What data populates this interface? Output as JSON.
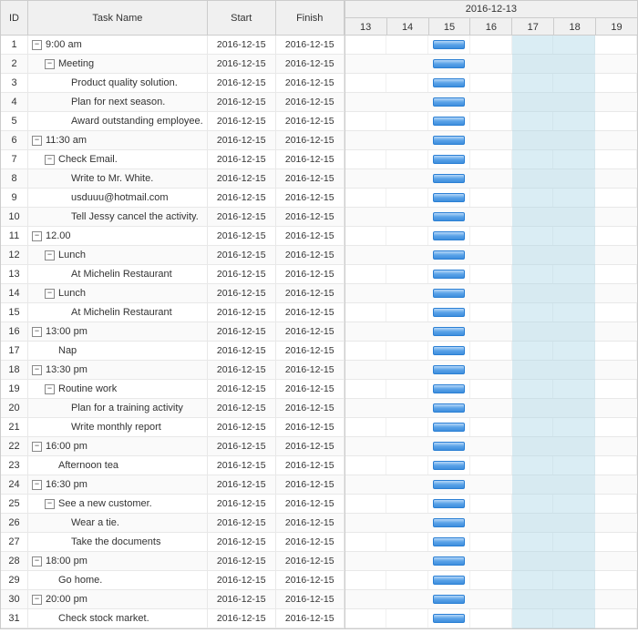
{
  "columns": {
    "id": "ID",
    "task": "Task Name",
    "start": "Start",
    "finish": "Finish"
  },
  "timeline": {
    "header_date": "2016-12-13",
    "days": [
      "13",
      "14",
      "15",
      "16",
      "17",
      "18",
      "19"
    ],
    "highlight_start_pct": 57.1,
    "highlight_end_pct": 85.7,
    "bar_left_pct": 30.0,
    "bar_width_pct": 11.0,
    "day_width_pct": 14.2857
  },
  "rows": [
    {
      "id": "1",
      "indent": 0,
      "expander": true,
      "name": "9:00 am",
      "start": "2016-12-15",
      "finish": "2016-12-15"
    },
    {
      "id": "2",
      "indent": 1,
      "expander": true,
      "name": "Meeting",
      "start": "2016-12-15",
      "finish": "2016-12-15"
    },
    {
      "id": "3",
      "indent": 2,
      "expander": false,
      "name": "Product quality solution.",
      "start": "2016-12-15",
      "finish": "2016-12-15"
    },
    {
      "id": "4",
      "indent": 2,
      "expander": false,
      "name": "Plan for next season.",
      "start": "2016-12-15",
      "finish": "2016-12-15"
    },
    {
      "id": "5",
      "indent": 2,
      "expander": false,
      "name": "Award outstanding employee.",
      "start": "2016-12-15",
      "finish": "2016-12-15"
    },
    {
      "id": "6",
      "indent": 0,
      "expander": true,
      "name": "11:30 am",
      "start": "2016-12-15",
      "finish": "2016-12-15"
    },
    {
      "id": "7",
      "indent": 1,
      "expander": true,
      "name": "Check Email.",
      "start": "2016-12-15",
      "finish": "2016-12-15"
    },
    {
      "id": "8",
      "indent": 2,
      "expander": false,
      "name": "Write to Mr. White.",
      "start": "2016-12-15",
      "finish": "2016-12-15"
    },
    {
      "id": "9",
      "indent": 2,
      "expander": false,
      "name": "usduuu@hotmail.com",
      "start": "2016-12-15",
      "finish": "2016-12-15"
    },
    {
      "id": "10",
      "indent": 2,
      "expander": false,
      "name": "Tell Jessy cancel the activity.",
      "start": "2016-12-15",
      "finish": "2016-12-15"
    },
    {
      "id": "11",
      "indent": 0,
      "expander": true,
      "name": "12.00",
      "start": "2016-12-15",
      "finish": "2016-12-15"
    },
    {
      "id": "12",
      "indent": 1,
      "expander": true,
      "name": "Lunch",
      "start": "2016-12-15",
      "finish": "2016-12-15"
    },
    {
      "id": "13",
      "indent": 2,
      "expander": false,
      "name": "At Michelin Restaurant",
      "start": "2016-12-15",
      "finish": "2016-12-15"
    },
    {
      "id": "14",
      "indent": 1,
      "expander": true,
      "name": "Lunch",
      "start": "2016-12-15",
      "finish": "2016-12-15"
    },
    {
      "id": "15",
      "indent": 2,
      "expander": false,
      "name": "At Michelin Restaurant",
      "start": "2016-12-15",
      "finish": "2016-12-15"
    },
    {
      "id": "16",
      "indent": 0,
      "expander": true,
      "name": "13:00 pm",
      "start": "2016-12-15",
      "finish": "2016-12-15"
    },
    {
      "id": "17",
      "indent": 1,
      "expander": false,
      "name": "Nap",
      "start": "2016-12-15",
      "finish": "2016-12-15"
    },
    {
      "id": "18",
      "indent": 0,
      "expander": true,
      "name": "13:30 pm",
      "start": "2016-12-15",
      "finish": "2016-12-15"
    },
    {
      "id": "19",
      "indent": 1,
      "expander": true,
      "name": "Routine work",
      "start": "2016-12-15",
      "finish": "2016-12-15"
    },
    {
      "id": "20",
      "indent": 2,
      "expander": false,
      "name": "Plan for a training activity",
      "start": "2016-12-15",
      "finish": "2016-12-15"
    },
    {
      "id": "21",
      "indent": 2,
      "expander": false,
      "name": "Write monthly report",
      "start": "2016-12-15",
      "finish": "2016-12-15"
    },
    {
      "id": "22",
      "indent": 0,
      "expander": true,
      "name": "16:00 pm",
      "start": "2016-12-15",
      "finish": "2016-12-15"
    },
    {
      "id": "23",
      "indent": 1,
      "expander": false,
      "name": "Afternoon tea",
      "start": "2016-12-15",
      "finish": "2016-12-15"
    },
    {
      "id": "24",
      "indent": 0,
      "expander": true,
      "name": "16:30 pm",
      "start": "2016-12-15",
      "finish": "2016-12-15"
    },
    {
      "id": "25",
      "indent": 1,
      "expander": true,
      "name": "See a new customer.",
      "start": "2016-12-15",
      "finish": "2016-12-15"
    },
    {
      "id": "26",
      "indent": 2,
      "expander": false,
      "name": "Wear a tie.",
      "start": "2016-12-15",
      "finish": "2016-12-15"
    },
    {
      "id": "27",
      "indent": 2,
      "expander": false,
      "name": "Take the documents",
      "start": "2016-12-15",
      "finish": "2016-12-15"
    },
    {
      "id": "28",
      "indent": 0,
      "expander": true,
      "name": "18:00 pm",
      "start": "2016-12-15",
      "finish": "2016-12-15"
    },
    {
      "id": "29",
      "indent": 1,
      "expander": false,
      "name": "Go home.",
      "start": "2016-12-15",
      "finish": "2016-12-15"
    },
    {
      "id": "30",
      "indent": 0,
      "expander": true,
      "name": "20:00 pm",
      "start": "2016-12-15",
      "finish": "2016-12-15"
    },
    {
      "id": "31",
      "indent": 1,
      "expander": false,
      "name": "Check stock market.",
      "start": "2016-12-15",
      "finish": "2016-12-15"
    }
  ]
}
